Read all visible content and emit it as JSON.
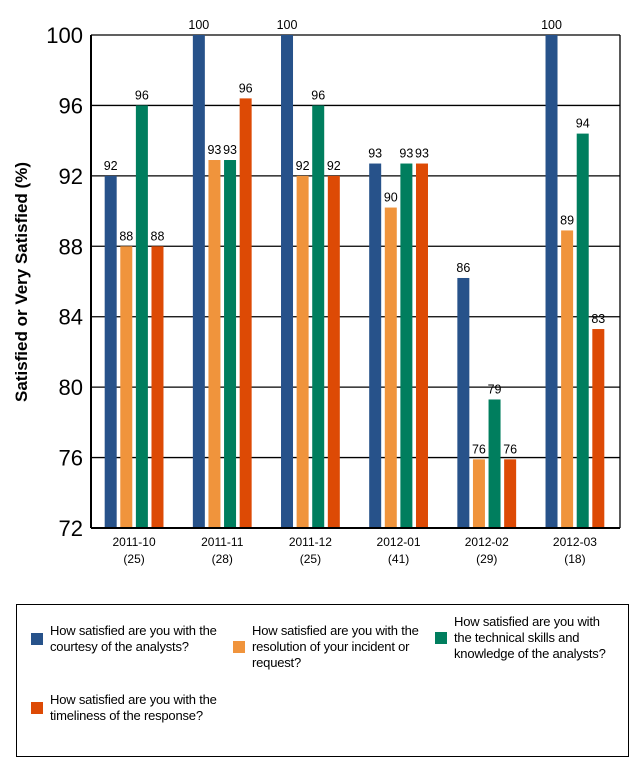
{
  "chart_data": {
    "type": "bar",
    "title": "",
    "xlabel": "",
    "ylabel": "Satisfied or Very Satisfied (%)",
    "ylim": [
      72,
      100
    ],
    "yticks": [
      72,
      76,
      80,
      84,
      88,
      92,
      96,
      100
    ],
    "grid": true,
    "legend_position": "bottom",
    "categories": [
      "2011-10",
      "2011-11",
      "2011-12",
      "2012-01",
      "2012-02",
      "2012-03"
    ],
    "category_counts": [
      "(25)",
      "(28)",
      "(25)",
      "(41)",
      "(29)",
      "(18)"
    ],
    "series": [
      {
        "name": "How satisfied are you with the courtesy of the analysts?",
        "color": "#27528A",
        "values": [
          92,
          100,
          100,
          92.7,
          86.2,
          100
        ],
        "labels": [
          "92",
          "100",
          "100",
          "93",
          "86",
          "100"
        ]
      },
      {
        "name": "How satisfied are you with the resolution of your incident or request?",
        "color": "#F0943C",
        "values": [
          88,
          92.9,
          92,
          90.2,
          75.9,
          88.9
        ],
        "labels": [
          "88",
          "93",
          "92",
          "90",
          "76",
          "89"
        ]
      },
      {
        "name": "How satisfied are you with the technical skills and knowledge of the analysts?",
        "color": "#007E5E",
        "values": [
          96,
          92.9,
          96,
          92.7,
          79.3,
          94.4
        ],
        "labels": [
          "96",
          "93",
          "96",
          "93",
          "79",
          "94"
        ]
      },
      {
        "name": "How satisfied are you with the timeliness of the response?",
        "color": "#DD4A05",
        "values": [
          88,
          96.4,
          92,
          92.7,
          75.9,
          83.3
        ],
        "labels": [
          "88",
          "96",
          "92",
          "93",
          "76",
          "83"
        ]
      }
    ]
  }
}
